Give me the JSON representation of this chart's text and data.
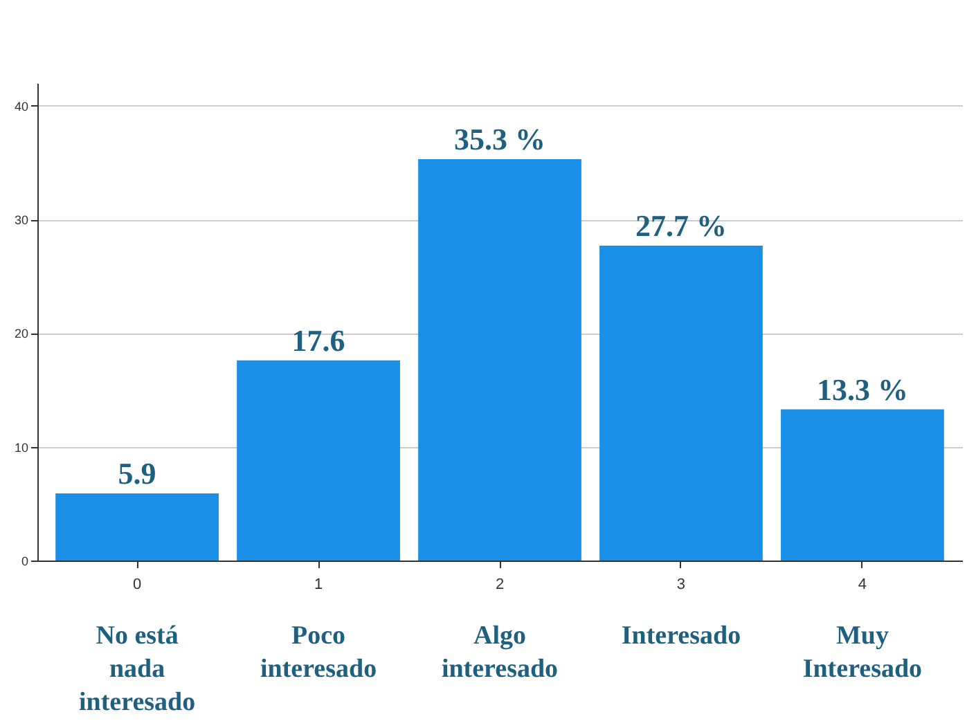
{
  "chart_data": {
    "type": "bar",
    "categories": [
      "0",
      "1",
      "2",
      "3",
      "4"
    ],
    "values": [
      5.9,
      17.6,
      35.3,
      27.7,
      13.3
    ],
    "color": "#1a8fe8",
    "value_labels": [
      "5.9",
      "17.6",
      "35.3 %",
      "27.7 %",
      "13.3 %"
    ],
    "annotations": [
      "No está\nnada\ninteresado",
      "Poco\ninteresado",
      "Algo\ninteresado",
      "Interesado",
      "Muy\nInteresado"
    ],
    "ylim": [
      0,
      42
    ],
    "yticks": [
      0,
      10,
      20,
      30,
      40
    ],
    "grid": "y"
  }
}
